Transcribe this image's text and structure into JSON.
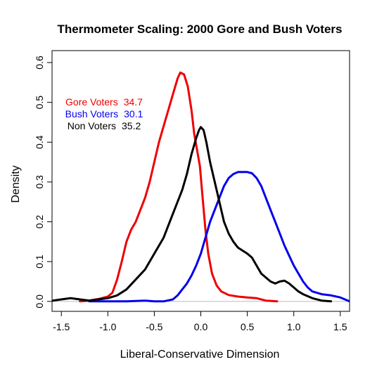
{
  "chart_data": {
    "type": "line",
    "title": "Thermometer Scaling: 2000 Gore and Bush Voters",
    "xlabel": "Liberal-Conservative Dimension",
    "ylabel": "Density",
    "xlim": [
      -1.6,
      1.6
    ],
    "ylim": [
      -0.025,
      0.63
    ],
    "x_ticks": [
      -1.5,
      -1.0,
      -0.5,
      0.0,
      0.5,
      1.0,
      1.5
    ],
    "x_tick_labels": [
      "-1.5",
      "-1.0",
      "-0.5",
      "0.0",
      "0.5",
      "1.0",
      "1.5"
    ],
    "y_ticks": [
      0.0,
      0.1,
      0.2,
      0.3,
      0.4,
      0.5,
      0.6
    ],
    "y_tick_labels": [
      "0.0",
      "0.1",
      "0.2",
      "0.3",
      "0.4",
      "0.5",
      "0.6"
    ],
    "baseline": {
      "y": 0,
      "color": "#bbbbbb"
    },
    "legend_placement": "top-left",
    "series": [
      {
        "name": "Gore Voters",
        "label_value": "34.7",
        "color": "#ee0000",
        "points": [
          [
            -1.3,
            0.0
          ],
          [
            -1.2,
            0.002
          ],
          [
            -1.1,
            0.006
          ],
          [
            -1.0,
            0.012
          ],
          [
            -0.95,
            0.022
          ],
          [
            -0.9,
            0.055
          ],
          [
            -0.85,
            0.1
          ],
          [
            -0.8,
            0.15
          ],
          [
            -0.75,
            0.18
          ],
          [
            -0.7,
            0.2
          ],
          [
            -0.65,
            0.23
          ],
          [
            -0.6,
            0.26
          ],
          [
            -0.55,
            0.3
          ],
          [
            -0.5,
            0.35
          ],
          [
            -0.45,
            0.4
          ],
          [
            -0.4,
            0.44
          ],
          [
            -0.35,
            0.48
          ],
          [
            -0.3,
            0.52
          ],
          [
            -0.25,
            0.56
          ],
          [
            -0.22,
            0.575
          ],
          [
            -0.18,
            0.57
          ],
          [
            -0.14,
            0.54
          ],
          [
            -0.1,
            0.48
          ],
          [
            -0.07,
            0.42
          ],
          [
            -0.04,
            0.38
          ],
          [
            -0.01,
            0.34
          ],
          [
            0.02,
            0.26
          ],
          [
            0.05,
            0.18
          ],
          [
            0.08,
            0.12
          ],
          [
            0.12,
            0.07
          ],
          [
            0.17,
            0.04
          ],
          [
            0.22,
            0.025
          ],
          [
            0.3,
            0.016
          ],
          [
            0.4,
            0.012
          ],
          [
            0.5,
            0.01
          ],
          [
            0.6,
            0.008
          ],
          [
            0.7,
            0.002
          ],
          [
            0.82,
            0.0
          ]
        ]
      },
      {
        "name": "Bush Voters",
        "label_value": "30.1",
        "color": "#0000ee",
        "points": [
          [
            -1.2,
            0.0
          ],
          [
            -1.0,
            0.0
          ],
          [
            -0.8,
            0.0
          ],
          [
            -0.6,
            0.002
          ],
          [
            -0.5,
            0.0
          ],
          [
            -0.4,
            0.0
          ],
          [
            -0.3,
            0.005
          ],
          [
            -0.25,
            0.015
          ],
          [
            -0.2,
            0.03
          ],
          [
            -0.15,
            0.045
          ],
          [
            -0.1,
            0.065
          ],
          [
            -0.05,
            0.09
          ],
          [
            0.0,
            0.12
          ],
          [
            0.05,
            0.16
          ],
          [
            0.1,
            0.2
          ],
          [
            0.15,
            0.23
          ],
          [
            0.2,
            0.26
          ],
          [
            0.25,
            0.29
          ],
          [
            0.3,
            0.31
          ],
          [
            0.35,
            0.32
          ],
          [
            0.4,
            0.325
          ],
          [
            0.45,
            0.325
          ],
          [
            0.5,
            0.325
          ],
          [
            0.55,
            0.322
          ],
          [
            0.6,
            0.31
          ],
          [
            0.65,
            0.29
          ],
          [
            0.7,
            0.26
          ],
          [
            0.75,
            0.23
          ],
          [
            0.8,
            0.2
          ],
          [
            0.85,
            0.17
          ],
          [
            0.9,
            0.14
          ],
          [
            0.95,
            0.115
          ],
          [
            1.0,
            0.09
          ],
          [
            1.05,
            0.07
          ],
          [
            1.1,
            0.05
          ],
          [
            1.15,
            0.035
          ],
          [
            1.2,
            0.025
          ],
          [
            1.3,
            0.018
          ],
          [
            1.4,
            0.015
          ],
          [
            1.5,
            0.01
          ],
          [
            1.6,
            0.0
          ]
        ]
      },
      {
        "name": "Non Voters",
        "label_value": "35.2",
        "color": "#000000",
        "points": [
          [
            -1.65,
            0.0
          ],
          [
            -1.5,
            0.005
          ],
          [
            -1.4,
            0.008
          ],
          [
            -1.3,
            0.005
          ],
          [
            -1.2,
            0.002
          ],
          [
            -1.1,
            0.005
          ],
          [
            -1.0,
            0.008
          ],
          [
            -0.9,
            0.015
          ],
          [
            -0.8,
            0.03
          ],
          [
            -0.7,
            0.055
          ],
          [
            -0.6,
            0.08
          ],
          [
            -0.5,
            0.12
          ],
          [
            -0.4,
            0.16
          ],
          [
            -0.3,
            0.22
          ],
          [
            -0.2,
            0.28
          ],
          [
            -0.15,
            0.32
          ],
          [
            -0.1,
            0.37
          ],
          [
            -0.05,
            0.41
          ],
          [
            -0.02,
            0.43
          ],
          [
            0.0,
            0.438
          ],
          [
            0.03,
            0.43
          ],
          [
            0.06,
            0.4
          ],
          [
            0.1,
            0.35
          ],
          [
            0.15,
            0.3
          ],
          [
            0.2,
            0.25
          ],
          [
            0.25,
            0.2
          ],
          [
            0.3,
            0.17
          ],
          [
            0.35,
            0.15
          ],
          [
            0.4,
            0.135
          ],
          [
            0.5,
            0.12
          ],
          [
            0.55,
            0.11
          ],
          [
            0.6,
            0.09
          ],
          [
            0.65,
            0.07
          ],
          [
            0.7,
            0.06
          ],
          [
            0.75,
            0.05
          ],
          [
            0.8,
            0.045
          ],
          [
            0.85,
            0.05
          ],
          [
            0.9,
            0.052
          ],
          [
            0.95,
            0.045
          ],
          [
            1.0,
            0.035
          ],
          [
            1.05,
            0.025
          ],
          [
            1.1,
            0.018
          ],
          [
            1.2,
            0.008
          ],
          [
            1.3,
            0.002
          ],
          [
            1.4,
            0.0
          ]
        ]
      }
    ]
  }
}
